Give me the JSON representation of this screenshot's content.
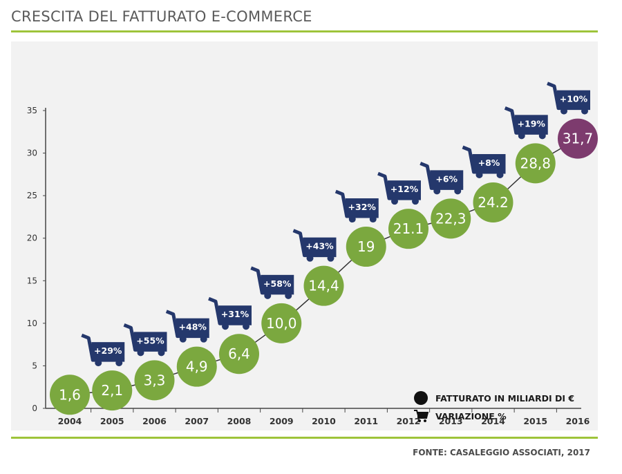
{
  "page": {
    "title": "CRESCITA DEL FATTURATO E-COMMERCE",
    "source": "FONTE: CASALEGGIO ASSOCIATI, 2017"
  },
  "legend": {
    "revenue_label": "FATTURATO IN MILIARDI DI €",
    "variation_label": "VARIAZIONE %",
    "revenue_icon": "filled-circle-icon",
    "variation_icon": "shopping-cart-icon"
  },
  "colors": {
    "bubble": "#7ba83f",
    "highlight_bubble": "#7d3b6e",
    "cart": "#25386c",
    "accent_rule": "#9ec43a",
    "panel": "#f2f2f2"
  },
  "chart_data": {
    "type": "line",
    "title": "CRESCITA DEL FATTURATO E-COMMERCE",
    "xlabel": "",
    "ylabel": "",
    "ylim": [
      0,
      35
    ],
    "yticks": [
      0,
      5,
      10,
      15,
      20,
      25,
      30,
      35
    ],
    "grid": false,
    "legend_position": "bottom-right",
    "categories": [
      "2004",
      "2005",
      "2006",
      "2007",
      "2008",
      "2009",
      "2010",
      "2011",
      "2012",
      "2013",
      "2014",
      "2015",
      "2016"
    ],
    "series": [
      {
        "name": "FATTURATO IN MILIARDI DI €",
        "values": [
          1.6,
          2.1,
          3.3,
          4.9,
          6.4,
          10.0,
          14.4,
          19,
          21.1,
          22.3,
          24.2,
          28.8,
          31.7
        ],
        "labels": [
          "1,6",
          "2,1",
          "3,3",
          "4,9",
          "6,4",
          "10,0",
          "14,4",
          "19",
          "21.1",
          "22,3",
          "24.2",
          "28,8",
          "31,7"
        ]
      },
      {
        "name": "VARIAZIONE %",
        "labels": [
          "",
          "+29%",
          "+55%",
          "+48%",
          "+31%",
          "+58%",
          "+43%",
          "+32%",
          "+12%",
          "+6%",
          "+8%",
          "+19%",
          "+10%"
        ]
      }
    ]
  }
}
